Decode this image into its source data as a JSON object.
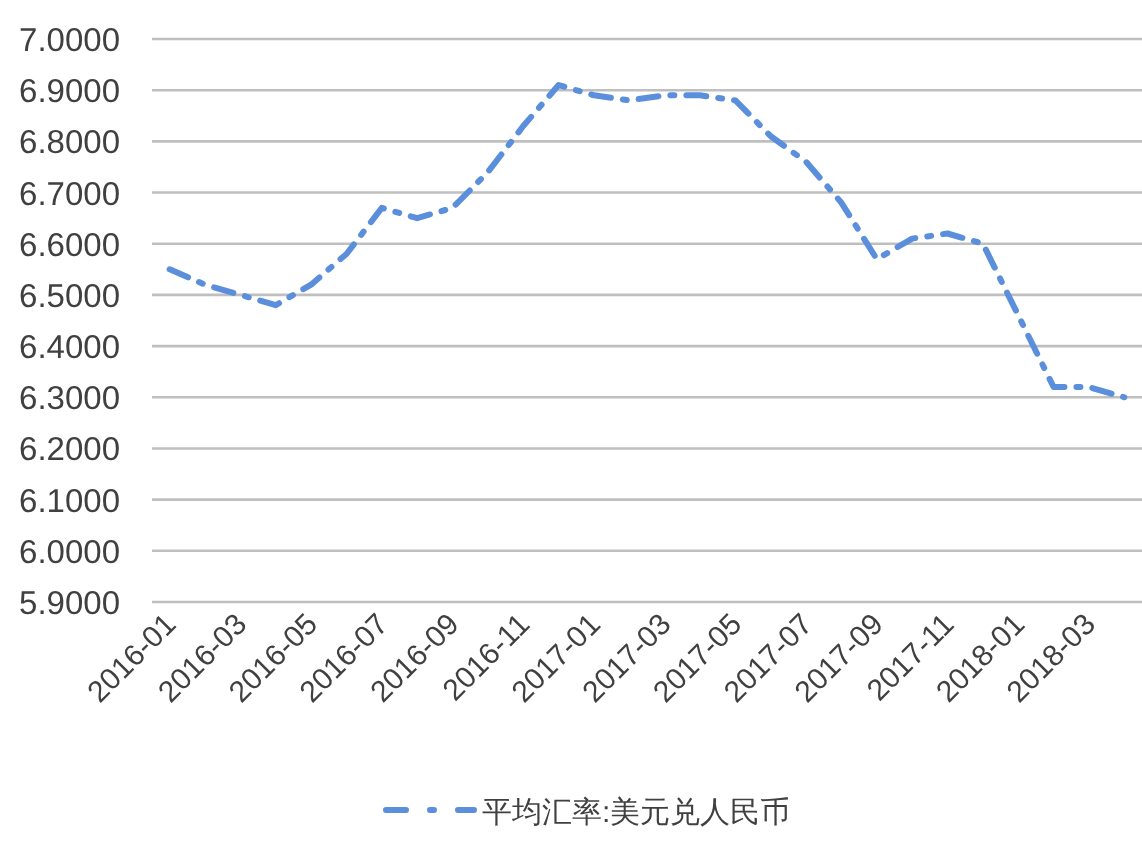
{
  "chart_data": {
    "type": "line",
    "categories": [
      "2016-01",
      null,
      "2016-03",
      null,
      "2016-05",
      null,
      "2016-07",
      null,
      "2016-09",
      null,
      "2016-11",
      null,
      "2017-01",
      null,
      "2017-03",
      null,
      "2017-05",
      null,
      "2017-07",
      null,
      "2017-09",
      null,
      "2017-11",
      null,
      "2018-01",
      null,
      "2018-03",
      null
    ],
    "series": [
      {
        "name": "平均汇率:美元兑人民币",
        "color": "#5b8fdc",
        "values": [
          6.55,
          6.52,
          6.5,
          6.48,
          6.52,
          6.58,
          6.67,
          6.65,
          6.67,
          6.74,
          6.83,
          6.91,
          6.89,
          6.88,
          6.89,
          6.89,
          6.88,
          6.81,
          6.76,
          6.68,
          6.57,
          6.61,
          6.62,
          6.6,
          6.46,
          6.32,
          6.32,
          6.3
        ]
      }
    ],
    "ylim": [
      5.9,
      7.0
    ],
    "yticks": [
      {
        "value": 5.9,
        "label": "5.9000"
      },
      {
        "value": 6.0,
        "label": "6.0000"
      },
      {
        "value": 6.1,
        "label": "6.1000"
      },
      {
        "value": 6.2,
        "label": "6.2000"
      },
      {
        "value": 6.3,
        "label": "6.3000"
      },
      {
        "value": 6.4,
        "label": "6.4000"
      },
      {
        "value": 6.5,
        "label": "6.5000"
      },
      {
        "value": 6.6,
        "label": "6.6000"
      },
      {
        "value": 6.7,
        "label": "6.7000"
      },
      {
        "value": 6.8,
        "label": "6.8000"
      },
      {
        "value": 6.9,
        "label": "6.9000"
      },
      {
        "value": 7.0,
        "label": "7.0000"
      }
    ],
    "grid": "y",
    "legend": "bottom",
    "line_style": "dashed"
  }
}
